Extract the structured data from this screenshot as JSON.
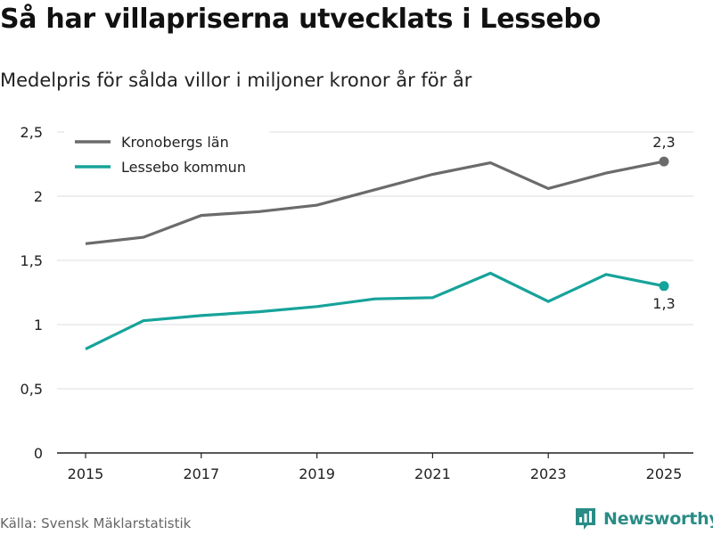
{
  "header": {
    "title": "Så har villapriserna utvecklats i Lessebo",
    "subtitle": "Medelpris för sålda villor i miljoner kronor år för år"
  },
  "footer": {
    "source": "Källa: Svensk Mäklarstatistik",
    "brand": "Newsworthy",
    "brand_icon": "bar-chart-logo-icon",
    "brand_color": "#2a8c86"
  },
  "chart_data": {
    "type": "line",
    "title": "Så har villapriserna utvecklats i Lessebo",
    "subtitle": "Medelpris för sålda villor i miljoner kronor år för år",
    "xlabel": "",
    "ylabel": "",
    "x": [
      2015,
      2016,
      2017,
      2018,
      2019,
      2020,
      2021,
      2022,
      2023,
      2024,
      2025
    ],
    "x_ticks": [
      "2015",
      "2017",
      "2019",
      "2021",
      "2023",
      "2025"
    ],
    "ylim": [
      0,
      2.5
    ],
    "y_ticks": [
      "0",
      "0,5",
      "1",
      "1,5",
      "2",
      "2,5"
    ],
    "y_tick_values": [
      0,
      0.5,
      1,
      1.5,
      2,
      2.5
    ],
    "grid": "horizontal",
    "legend_position": "top-left",
    "series": [
      {
        "name": "Kronobergs län",
        "color": "#6b6b6b",
        "values": [
          1.63,
          1.68,
          1.85,
          1.88,
          1.93,
          2.05,
          2.17,
          2.26,
          2.06,
          2.18,
          2.27
        ],
        "end_label": "2,3"
      },
      {
        "name": "Lessebo kommun",
        "color": "#16a39a",
        "values": [
          0.81,
          1.03,
          1.07,
          1.1,
          1.14,
          1.2,
          1.21,
          1.4,
          1.18,
          1.39,
          1.3
        ],
        "end_label": "1,3"
      }
    ]
  }
}
